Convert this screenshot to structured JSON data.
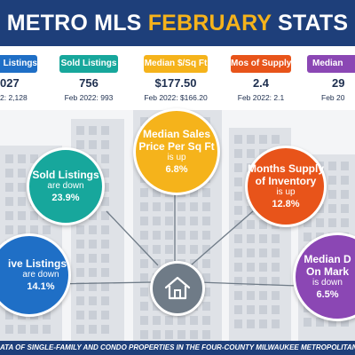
{
  "header": {
    "title_part1": "METRO MLS ",
    "title_accent": "FEBRUARY",
    "title_part2": " STATS"
  },
  "stats": [
    {
      "label": "Listings",
      "value": "027",
      "prev": "2: 2,128",
      "color": "#1f6fc6"
    },
    {
      "label": "Sold Listings",
      "value": "756",
      "prev": "Feb 2022: 993",
      "color": "#17a79c"
    },
    {
      "label": "Median $/Sq Ft",
      "value": "$177.50",
      "prev": "Feb 2022: $166.20",
      "color": "#f5b31b"
    },
    {
      "label": "Mos of Supply",
      "value": "2.4",
      "prev": "Feb 2022: 2.1",
      "color": "#e8541a"
    },
    {
      "label": "Median",
      "value": "29",
      "prev": "Feb 20",
      "color": "#8b47b4"
    }
  ],
  "circles": {
    "active": {
      "title": "ive Listings",
      "dir": "are down",
      "pct": "14.1%",
      "color": "#1f6fc6"
    },
    "sold": {
      "title": "Sold Listings",
      "dir": "are down",
      "pct": "23.9%",
      "color": "#17a79c"
    },
    "price": {
      "title_line1": "Median Sales",
      "title_line2": "Price Per Sq Ft",
      "dir": "is up",
      "pct": "6.8%",
      "color": "#f5b31b"
    },
    "supply": {
      "title_line1": "Months Supply",
      "title_line2": "of Inventory",
      "dir": "is up",
      "pct": "12.8%",
      "color": "#e8541a"
    },
    "dom": {
      "title_line1": "Median D",
      "title_line2": "On Mark",
      "dir": "is down",
      "pct": "6.5%",
      "color": "#8b47b4"
    }
  },
  "icons": {
    "center": "home-icon"
  },
  "footer": {
    "text": "ATA OF SINGLE-FAMILY AND CONDO PROPERTIES IN THE FOUR-COUNTY MILWAUKEE METROPOLITAN ARE"
  }
}
